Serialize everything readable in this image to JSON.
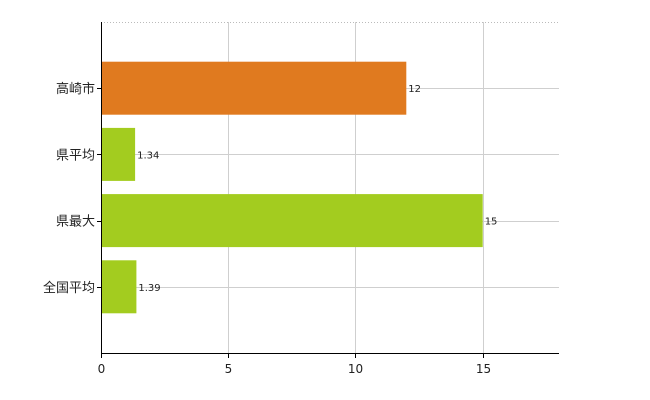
{
  "chart_data": {
    "type": "bar",
    "orientation": "horizontal",
    "categories": [
      "高崎市",
      "県平均",
      "県最大",
      "全国平均"
    ],
    "values": [
      12,
      1.34,
      15,
      1.39
    ],
    "value_labels": [
      "12",
      "1.34",
      "15",
      "1.39"
    ],
    "bar_colors": [
      "#e07a1f",
      "#a3cc1f",
      "#a3cc1f",
      "#a3cc1f"
    ],
    "xlim": [
      0,
      18
    ],
    "xticks": [
      0,
      5,
      10,
      15
    ],
    "xtick_labels": [
      "0",
      "5",
      "10",
      "15"
    ],
    "grid": true,
    "title": "",
    "xlabel": "",
    "ylabel": ""
  }
}
